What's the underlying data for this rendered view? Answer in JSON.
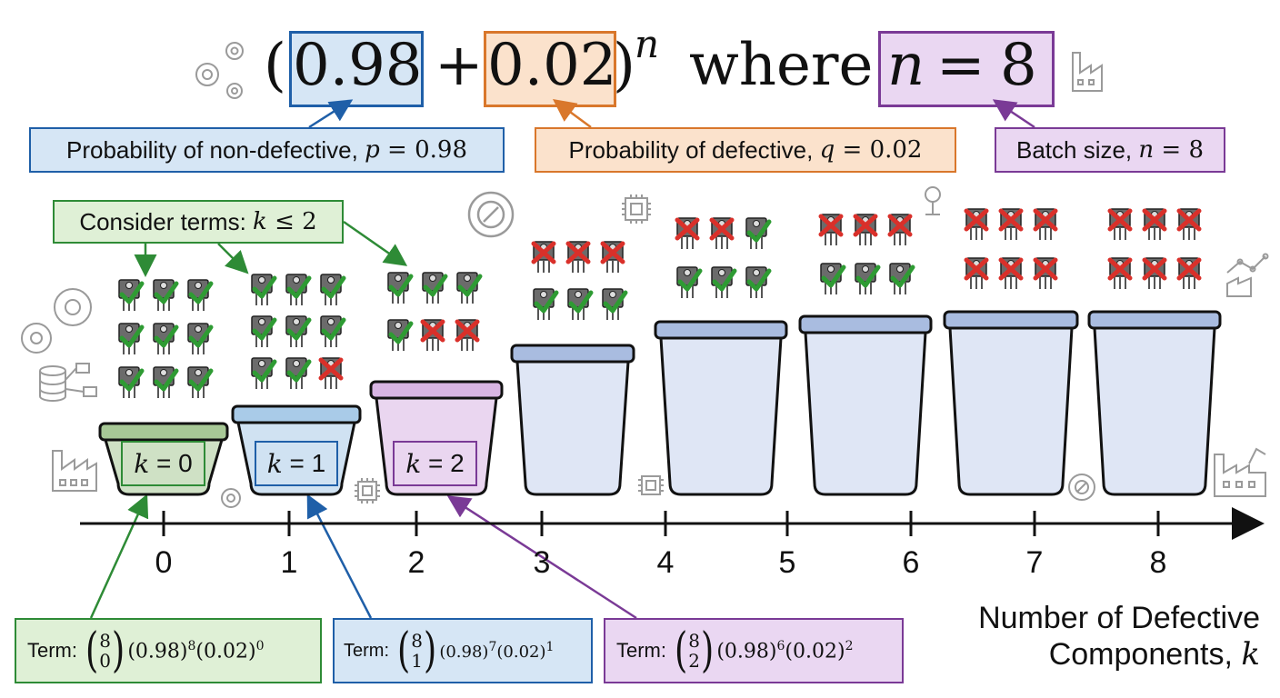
{
  "formula": {
    "open_paren": "(",
    "p_value": "0.98",
    "plus": "+",
    "q_value": "0.02",
    "close_paren": ")",
    "exponent": "n",
    "where": "where",
    "n_expr_var": "n",
    "n_expr_eq": "=",
    "n_expr_val": "8"
  },
  "callouts": {
    "p": {
      "prefix": "Probability of non-defective, ",
      "var": "p",
      "eq": " = ",
      "val": "0.98"
    },
    "q": {
      "prefix": "Probability of defective, ",
      "var": "q",
      "eq": " = ",
      "val": "0.02"
    },
    "n": {
      "prefix": "Batch size, ",
      "var": "n",
      "eq": " = ",
      "val": "8"
    },
    "consider": {
      "prefix": "Consider terms: ",
      "var": "k",
      "rel": " ≤ ",
      "val": "2"
    }
  },
  "bins": [
    {
      "k": "0",
      "label_var": "k",
      "label_eq": " = ",
      "label_val": "0",
      "good": 9,
      "bad": 0,
      "color": "#a7c896"
    },
    {
      "k": "1",
      "label_var": "k",
      "label_eq": " = ",
      "label_val": "1",
      "good": 8,
      "bad": 1,
      "color": "#a9cbe8"
    },
    {
      "k": "2",
      "label_var": "k",
      "label_eq": " = ",
      "label_val": "2",
      "good": 4,
      "bad": 2,
      "color": "#d8b5e3"
    },
    {
      "k": "3",
      "good": 3,
      "bad": 3,
      "color": "#a9bce0"
    },
    {
      "k": "4",
      "good": 3,
      "bad": 2,
      "color": "#a9bce0"
    },
    {
      "k": "5",
      "good": 3,
      "bad": 3,
      "color": "#a9bce0"
    },
    {
      "k": "6",
      "good": 0,
      "bad": 6,
      "color": "#a9bce0"
    },
    {
      "k": "7",
      "good": 0,
      "bad": 6,
      "color": "#a9bce0"
    },
    {
      "k": "8",
      "good": 0,
      "bad": 6,
      "color": "#a9bce0"
    }
  ],
  "axis": {
    "ticks": [
      "0",
      "1",
      "2",
      "3",
      "4",
      "5",
      "6",
      "7",
      "8"
    ],
    "label_line1": "Number of Defective",
    "label_line2_text": "Components, ",
    "label_line2_var": "k"
  },
  "terms": [
    {
      "prefix": "Term: ",
      "top": "8",
      "bottom": "0",
      "b1": "(0.98)",
      "e1": "8",
      "b2": "(0.02)",
      "e2": "0"
    },
    {
      "prefix": "Term: ",
      "top": "8",
      "bottom": "1",
      "b1": "(0.98)",
      "e1": "7",
      "b2": "(0.02)",
      "e2": "1"
    },
    {
      "prefix": "Term: ",
      "top": "8",
      "bottom": "2",
      "b1": "(0.98)",
      "e1": "6",
      "b2": "(0.02)",
      "e2": "2"
    }
  ],
  "icons": [
    "gears-icon",
    "factory-icon",
    "wrench-gear-icon",
    "chip-icon",
    "chart-factory-icon",
    "database-flow-icon",
    "robot-arm-factory-icon"
  ],
  "colors": {
    "blue": "#1f5fa8",
    "blue_fill": "#d6e6f5",
    "orange": "#d9772b",
    "orange_fill": "#fbe2cc",
    "purple": "#7a3a96",
    "purple_fill": "#ead7f2",
    "green": "#2e8b36",
    "green_fill": "#dff0d6",
    "check": "#2e9b33",
    "cross": "#d9302a"
  }
}
